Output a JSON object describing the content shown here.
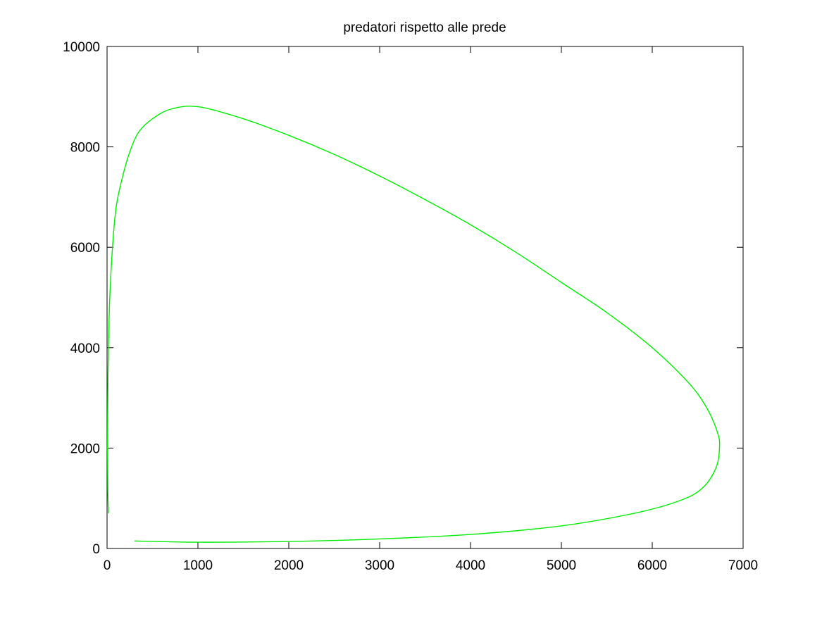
{
  "chart_data": {
    "type": "line",
    "title": "predatori rispetto alle prede",
    "xlabel": "",
    "ylabel": "",
    "xlim": [
      0,
      7000
    ],
    "ylim": [
      0,
      10000
    ],
    "x_ticks": [
      0,
      1000,
      2000,
      3000,
      4000,
      5000,
      6000,
      7000
    ],
    "y_ticks": [
      0,
      2000,
      4000,
      6000,
      8000,
      10000
    ],
    "x_tick_labels": [
      "0",
      "1000",
      "2000",
      "3000",
      "4000",
      "5000",
      "6000",
      "7000"
    ],
    "y_tick_labels": [
      "0",
      "2000",
      "4000",
      "6000",
      "8000",
      "10000"
    ],
    "grid": false,
    "series": [
      {
        "color": "#00ee00",
        "x": [
          300,
          1000,
          2000,
          3000,
          4000,
          5000,
          5800,
          6300,
          6550,
          6700,
          6740,
          6720,
          6600,
          6400,
          6000,
          5500,
          5000,
          4500,
          4000,
          3500,
          3000,
          2500,
          2000,
          1500,
          1000,
          700,
          500,
          350,
          250,
          170,
          100,
          60,
          30,
          15,
          8,
          5,
          8,
          15
        ],
        "y": [
          150,
          125,
          140,
          190,
          280,
          450,
          700,
          950,
          1200,
          1600,
          2000,
          2300,
          2800,
          3300,
          4000,
          4700,
          5300,
          5900,
          6450,
          6950,
          7420,
          7850,
          8230,
          8560,
          8800,
          8750,
          8560,
          8300,
          7900,
          7400,
          6800,
          6000,
          5000,
          4000,
          3000,
          2000,
          1200,
          700
        ]
      }
    ]
  }
}
